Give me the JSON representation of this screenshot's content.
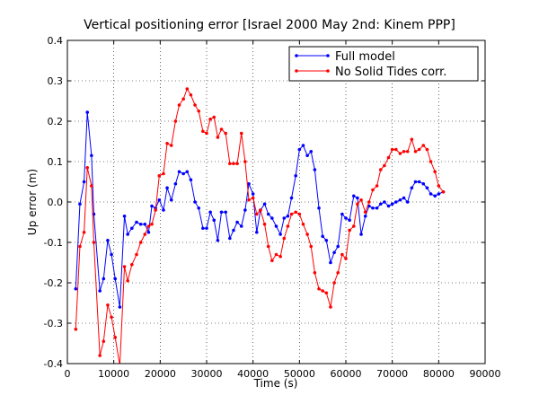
{
  "chart_data": {
    "type": "line",
    "title": "Vertical positioning error [Israel 2000 May 2nd: Kinem PPP]",
    "xlabel": "Time (s)",
    "ylabel": "Up error (m)",
    "xlim": [
      0,
      90000
    ],
    "ylim": [
      -0.4,
      0.4
    ],
    "xticks": [
      0,
      10000,
      20000,
      30000,
      40000,
      50000,
      60000,
      70000,
      80000,
      90000
    ],
    "xtick_labels": [
      "0",
      "10000",
      "20000",
      "30000",
      "40000",
      "50000",
      "60000",
      "70000",
      "80000",
      "90000"
    ],
    "yticks": [
      -0.4,
      -0.3,
      -0.2,
      -0.1,
      0.0,
      0.1,
      0.2,
      0.3,
      0.4
    ],
    "ytick_labels": [
      "-0.4",
      "-0.3",
      "-0.2",
      "-0.1",
      "0.0",
      "0.1",
      "0.2",
      "0.3",
      "0.4"
    ],
    "grid": true,
    "legend_position": "top-right",
    "series": [
      {
        "name": "Full model",
        "color": "#0000ff",
        "points": [
          [
            1800,
            -0.215
          ],
          [
            2700,
            -0.005
          ],
          [
            3600,
            0.05
          ],
          [
            4300,
            0.222
          ],
          [
            5200,
            0.115
          ],
          [
            5700,
            -0.03
          ],
          [
            7000,
            -0.22
          ],
          [
            7800,
            -0.19
          ],
          [
            8700,
            -0.095
          ],
          [
            9500,
            -0.13
          ],
          [
            10300,
            -0.19
          ],
          [
            11300,
            -0.26
          ],
          [
            12300,
            -0.035
          ],
          [
            13000,
            -0.08
          ],
          [
            13900,
            -0.065
          ],
          [
            14900,
            -0.05
          ],
          [
            15800,
            -0.055
          ],
          [
            16700,
            -0.055
          ],
          [
            17500,
            -0.075
          ],
          [
            18200,
            -0.01
          ],
          [
            19000,
            -0.015
          ],
          [
            19800,
            0.005
          ],
          [
            20700,
            -0.02
          ],
          [
            21500,
            0.035
          ],
          [
            22400,
            0.005
          ],
          [
            23300,
            0.045
          ],
          [
            24100,
            0.075
          ],
          [
            25000,
            0.07
          ],
          [
            25800,
            0.075
          ],
          [
            26600,
            0.055
          ],
          [
            27500,
            0.0
          ],
          [
            28300,
            -0.015
          ],
          [
            29200,
            -0.065
          ],
          [
            30000,
            -0.065
          ],
          [
            30800,
            -0.025
          ],
          [
            31600,
            -0.045
          ],
          [
            32400,
            -0.095
          ],
          [
            33200,
            -0.025
          ],
          [
            34100,
            -0.025
          ],
          [
            35000,
            -0.09
          ],
          [
            35800,
            -0.07
          ],
          [
            36600,
            -0.05
          ],
          [
            37500,
            -0.06
          ],
          [
            38300,
            -0.02
          ],
          [
            39100,
            0.045
          ],
          [
            40000,
            0.02
          ],
          [
            40800,
            -0.075
          ],
          [
            41600,
            -0.02
          ],
          [
            42500,
            -0.005
          ],
          [
            43300,
            -0.03
          ],
          [
            44100,
            -0.04
          ],
          [
            45000,
            -0.06
          ],
          [
            45900,
            -0.08
          ],
          [
            46700,
            -0.04
          ],
          [
            47500,
            -0.035
          ],
          [
            48300,
            0.01
          ],
          [
            49200,
            0.065
          ],
          [
            50000,
            0.13
          ],
          [
            50800,
            0.14
          ],
          [
            51700,
            0.115
          ],
          [
            52500,
            0.125
          ],
          [
            53300,
            0.08
          ],
          [
            54200,
            -0.015
          ],
          [
            55000,
            -0.085
          ],
          [
            55800,
            -0.095
          ],
          [
            56700,
            -0.15
          ],
          [
            57500,
            -0.125
          ],
          [
            58300,
            -0.11
          ],
          [
            59200,
            -0.03
          ],
          [
            60000,
            -0.04
          ],
          [
            60800,
            -0.045
          ],
          [
            61700,
            0.015
          ],
          [
            62500,
            0.01
          ],
          [
            63300,
            -0.08
          ],
          [
            64200,
            -0.035
          ],
          [
            65000,
            -0.01
          ],
          [
            65800,
            -0.015
          ],
          [
            66700,
            -0.015
          ],
          [
            67500,
            -0.005
          ],
          [
            68300,
            0.0
          ],
          [
            69200,
            -0.01
          ],
          [
            70000,
            -0.005
          ],
          [
            70800,
            0.0
          ],
          [
            71700,
            0.005
          ],
          [
            72500,
            0.01
          ],
          [
            73300,
            0.0
          ],
          [
            74200,
            0.035
          ],
          [
            75000,
            0.05
          ],
          [
            75800,
            0.05
          ],
          [
            76700,
            0.045
          ],
          [
            77500,
            0.035
          ],
          [
            78300,
            0.02
          ],
          [
            79200,
            0.015
          ],
          [
            80000,
            0.02
          ],
          [
            81000,
            0.025
          ]
        ]
      },
      {
        "name": "No Solid Tides corr.",
        "color": "#ff0000",
        "points": [
          [
            1800,
            -0.315
          ],
          [
            2700,
            -0.11
          ],
          [
            3600,
            -0.075
          ],
          [
            4300,
            0.085
          ],
          [
            5200,
            0.04
          ],
          [
            5700,
            -0.1
          ],
          [
            7000,
            -0.38
          ],
          [
            7800,
            -0.345
          ],
          [
            8700,
            -0.255
          ],
          [
            9500,
            -0.285
          ],
          [
            10300,
            -0.335
          ],
          [
            11300,
            -0.405
          ],
          [
            12300,
            -0.16
          ],
          [
            13000,
            -0.195
          ],
          [
            13900,
            -0.155
          ],
          [
            14900,
            -0.13
          ],
          [
            15800,
            -0.1
          ],
          [
            16700,
            -0.08
          ],
          [
            17500,
            -0.06
          ],
          [
            18200,
            -0.055
          ],
          [
            19000,
            -0.02
          ],
          [
            19800,
            0.065
          ],
          [
            20700,
            0.07
          ],
          [
            21500,
            0.145
          ],
          [
            22400,
            0.14
          ],
          [
            23300,
            0.2
          ],
          [
            24100,
            0.24
          ],
          [
            25000,
            0.255
          ],
          [
            25800,
            0.28
          ],
          [
            26600,
            0.265
          ],
          [
            27500,
            0.24
          ],
          [
            28300,
            0.225
          ],
          [
            29200,
            0.175
          ],
          [
            30000,
            0.17
          ],
          [
            30800,
            0.205
          ],
          [
            31600,
            0.21
          ],
          [
            32400,
            0.16
          ],
          [
            33200,
            0.18
          ],
          [
            34100,
            0.17
          ],
          [
            35000,
            0.095
          ],
          [
            35800,
            0.095
          ],
          [
            36600,
            0.095
          ],
          [
            37500,
            0.17
          ],
          [
            38300,
            0.1
          ],
          [
            39100,
            0.005
          ],
          [
            40000,
            0.01
          ],
          [
            40800,
            -0.03
          ],
          [
            41600,
            -0.02
          ],
          [
            42500,
            -0.055
          ],
          [
            43300,
            -0.11
          ],
          [
            44100,
            -0.145
          ],
          [
            45000,
            -0.13
          ],
          [
            45900,
            -0.135
          ],
          [
            46700,
            -0.09
          ],
          [
            47500,
            -0.06
          ],
          [
            48300,
            -0.03
          ],
          [
            49200,
            -0.025
          ],
          [
            50000,
            -0.03
          ],
          [
            50800,
            -0.055
          ],
          [
            51700,
            -0.08
          ],
          [
            52500,
            -0.11
          ],
          [
            53300,
            -0.175
          ],
          [
            54200,
            -0.215
          ],
          [
            55000,
            -0.22
          ],
          [
            55800,
            -0.225
          ],
          [
            56700,
            -0.26
          ],
          [
            57500,
            -0.2
          ],
          [
            58300,
            -0.175
          ],
          [
            59200,
            -0.13
          ],
          [
            60000,
            -0.14
          ],
          [
            60800,
            -0.07
          ],
          [
            61700,
            -0.06
          ],
          [
            62500,
            -0.005
          ],
          [
            63300,
            0.005
          ],
          [
            64200,
            -0.025
          ],
          [
            65000,
            0.0
          ],
          [
            65800,
            0.03
          ],
          [
            66700,
            0.04
          ],
          [
            67500,
            0.08
          ],
          [
            68300,
            0.09
          ],
          [
            69200,
            0.11
          ],
          [
            70000,
            0.13
          ],
          [
            70800,
            0.13
          ],
          [
            71700,
            0.12
          ],
          [
            72500,
            0.125
          ],
          [
            73300,
            0.125
          ],
          [
            74200,
            0.155
          ],
          [
            75000,
            0.125
          ],
          [
            75800,
            0.13
          ],
          [
            76700,
            0.14
          ],
          [
            77500,
            0.13
          ],
          [
            78300,
            0.1
          ],
          [
            79200,
            0.075
          ],
          [
            80000,
            0.04
          ],
          [
            81000,
            0.025
          ]
        ]
      }
    ]
  }
}
